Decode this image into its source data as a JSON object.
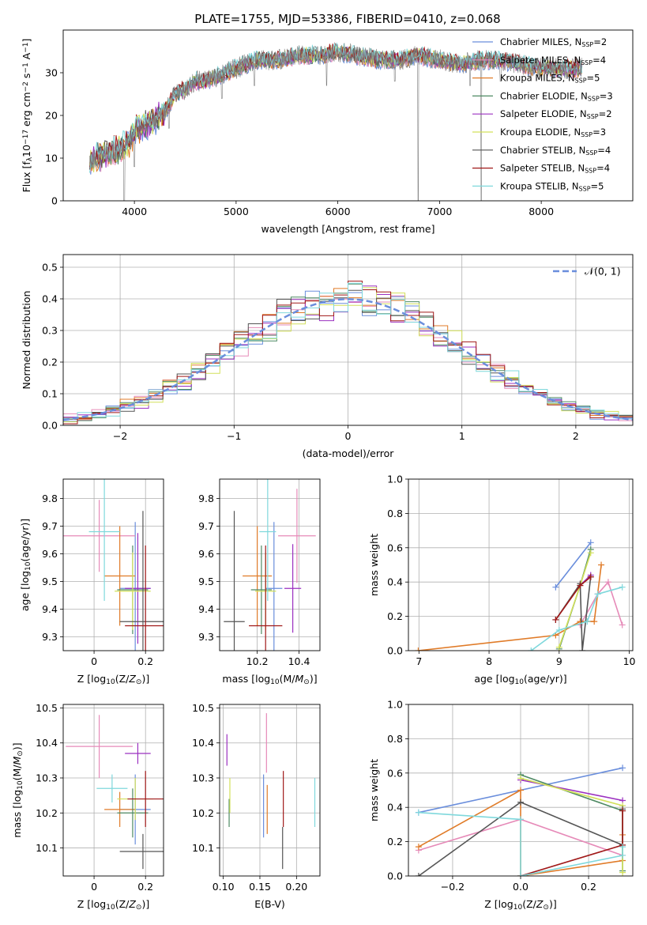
{
  "title": "PLATE=1755, MJD=53386, FIBERID=0410, z=0.068",
  "colors": {
    "chabrier_miles": "#6a8edc",
    "salpeter_miles": "#e68ab8",
    "kroupa_miles": "#e07b28",
    "chabrier_elodie": "#4e8a63",
    "salpeter_elodie": "#9b30c0",
    "kroupa_elodie": "#d2e05a",
    "chabrier_stelib": "#555555",
    "salpeter_stelib": "#a01818",
    "kroupa_stelib": "#7fd8dc"
  },
  "chart_data": [
    {
      "type": "line",
      "panel": "spectrum",
      "xlabel": "wavelength [Angstrom, rest frame]",
      "ylabel": "Flux [f_λ10^-17 erg cm^-2 s^-1 A^-1]",
      "xlim": [
        3300,
        8900
      ],
      "ylim": [
        0,
        40
      ],
      "xticks": [
        4000,
        5000,
        6000,
        7000,
        8000
      ],
      "yticks": [
        0,
        10,
        20,
        30
      ],
      "grid": false,
      "legend_position": "top-right",
      "legend": [
        {
          "prefix": "Chabrier MILES, N",
          "sub": "SSP",
          "suffix": "=2",
          "color_key": "chabrier_miles"
        },
        {
          "prefix": "Salpeter MILES, N",
          "sub": "SSP",
          "suffix": "=4",
          "color_key": "salpeter_miles"
        },
        {
          "prefix": "Kroupa MILES, N",
          "sub": "SSP",
          "suffix": "=5",
          "color_key": "kroupa_miles"
        },
        {
          "prefix": "Chabrier ELODIE, N",
          "sub": "SSP",
          "suffix": "=3",
          "color_key": "chabrier_elodie"
        },
        {
          "prefix": "Salpeter ELODIE, N",
          "sub": "SSP",
          "suffix": "=2",
          "color_key": "salpeter_elodie"
        },
        {
          "prefix": "Kroupa ELODIE, N",
          "sub": "SSP",
          "suffix": "=3",
          "color_key": "kroupa_elodie"
        },
        {
          "prefix": "Chabrier STELIB, N",
          "sub": "SSP",
          "suffix": "=4",
          "color_key": "chabrier_stelib"
        },
        {
          "prefix": "Salpeter STELIB, N",
          "sub": "SSP",
          "suffix": "=4",
          "color_key": "salpeter_stelib"
        },
        {
          "prefix": "Kroupa STELIB, N",
          "sub": "SSP",
          "suffix": "=5",
          "color_key": "kroupa_stelib"
        }
      ],
      "continuum": {
        "x": [
          3560,
          3700,
          3850,
          3950,
          4000,
          4100,
          4200,
          4300,
          4400,
          4500,
          4600,
          4700,
          4800,
          4900,
          5000,
          5200,
          5400,
          5600,
          5800,
          6000,
          6200,
          6400,
          6600,
          6800,
          7000,
          7200,
          7400,
          7600,
          7800,
          8000,
          8200,
          8400
        ],
        "y": [
          9,
          11,
          12,
          14,
          16,
          18,
          19,
          21,
          25,
          26,
          28,
          28,
          29,
          30,
          31,
          33,
          33,
          34,
          34,
          35,
          34,
          33,
          33,
          34,
          33,
          32,
          33,
          33,
          32,
          31,
          31,
          31
        ]
      },
      "dips": [
        {
          "x": 3900,
          "y": 0
        },
        {
          "x": 4000,
          "y": 8
        },
        {
          "x": 4340,
          "y": 17
        },
        {
          "x": 4860,
          "y": 24
        },
        {
          "x": 5180,
          "y": 27
        },
        {
          "x": 5890,
          "y": 27
        },
        {
          "x": 6560,
          "y": 28
        },
        {
          "x": 6790,
          "y": 0
        },
        {
          "x": 7300,
          "y": 27
        },
        {
          "x": 7410,
          "y": 0
        },
        {
          "x": 7600,
          "y": 28
        }
      ],
      "observed_color": "#808080"
    },
    {
      "type": "histogram",
      "panel": "residuals",
      "xlabel": "(data-model)/error",
      "ylabel": "Normed distribution",
      "xlim": [
        -2.5,
        2.5
      ],
      "ylim": [
        0,
        0.54
      ],
      "xticks": [
        -2,
        -1,
        0,
        1,
        2
      ],
      "xtick_labels": [
        "−2",
        "−1",
        "0",
        "1",
        "2"
      ],
      "yticks": [
        0.0,
        0.1,
        0.2,
        0.3,
        0.4,
        0.5
      ],
      "grid": true,
      "bin_width": 0.125,
      "legend_position": "top-right",
      "reference_curve": {
        "name": "𝒩(0, 1)",
        "mean": 0,
        "sigma": 1,
        "color": "#6a8edc",
        "dashed": true
      }
    },
    {
      "type": "scatter",
      "panel": "age-vs-Z",
      "xlabel": "Z [log10(Z/Z☉)]",
      "ylabel": "age [log10(age/yr)]",
      "xlim": [
        -0.12,
        0.27
      ],
      "ylim": [
        9.25,
        9.87
      ],
      "xticks": [
        0.0,
        0.2
      ],
      "yticks": [
        9.3,
        9.4,
        9.5,
        9.6,
        9.7,
        9.8
      ],
      "grid": true,
      "points": [
        {
          "key": "chabrier_miles",
          "x": 0.16,
          "y": 9.475,
          "xerr": 0.06,
          "yerr": 0.24
        },
        {
          "key": "salpeter_miles",
          "x": 0.02,
          "y": 9.665,
          "xerr": 0.14,
          "yerr": 0.13
        },
        {
          "key": "kroupa_miles",
          "x": 0.1,
          "y": 9.52,
          "xerr": 0.06,
          "yerr": 0.18
        },
        {
          "key": "chabrier_elodie",
          "x": 0.15,
          "y": 9.47,
          "xerr": 0.06,
          "yerr": 0.16
        },
        {
          "key": "salpeter_elodie",
          "x": 0.17,
          "y": 9.475,
          "xerr": 0.05,
          "yerr": 0.2
        },
        {
          "key": "kroupa_elodie",
          "x": 0.15,
          "y": 9.465,
          "xerr": 0.07,
          "yerr": 0.14
        },
        {
          "key": "chabrier_stelib",
          "x": 0.19,
          "y": 9.355,
          "xerr": 0.09,
          "yerr": 0.4
        },
        {
          "key": "salpeter_stelib",
          "x": 0.2,
          "y": 9.34,
          "xerr": 0.08,
          "yerr": 0.29
        },
        {
          "key": "kroupa_stelib",
          "x": 0.04,
          "y": 9.68,
          "xerr": 0.06,
          "yerr": 0.25
        }
      ]
    },
    {
      "type": "scatter",
      "panel": "age-vs-mass",
      "xlabel": "mass [log10(M/M☉)]",
      "ylabel": "",
      "xlim": [
        10.02,
        10.5
      ],
      "ylim": [
        9.25,
        9.87
      ],
      "xticks": [
        10.2,
        10.4
      ],
      "yticks": [
        9.3,
        9.4,
        9.5,
        9.6,
        9.7,
        9.8
      ],
      "grid": true,
      "points": [
        {
          "key": "chabrier_miles",
          "x": 10.28,
          "y": 9.475,
          "xerr": 0.04,
          "yerr": 0.24
        },
        {
          "key": "salpeter_miles",
          "x": 10.39,
          "y": 9.665,
          "xerr": 0.09,
          "yerr": 0.17
        },
        {
          "key": "kroupa_miles",
          "x": 10.2,
          "y": 9.52,
          "xerr": 0.07,
          "yerr": 0.18
        },
        {
          "key": "chabrier_elodie",
          "x": 10.22,
          "y": 9.47,
          "xerr": 0.05,
          "yerr": 0.16
        },
        {
          "key": "salpeter_elodie",
          "x": 10.37,
          "y": 9.475,
          "xerr": 0.04,
          "yerr": 0.16
        },
        {
          "key": "kroupa_elodie",
          "x": 10.24,
          "y": 9.465,
          "xerr": 0.05,
          "yerr": 0.14
        },
        {
          "key": "chabrier_stelib",
          "x": 10.09,
          "y": 9.355,
          "xerr": 0.05,
          "yerr": 0.4
        },
        {
          "key": "salpeter_stelib",
          "x": 10.24,
          "y": 9.34,
          "xerr": 0.08,
          "yerr": 0.29
        },
        {
          "key": "kroupa_stelib",
          "x": 10.25,
          "y": 9.68,
          "xerr": 0.04,
          "yerr": 0.25
        }
      ]
    },
    {
      "type": "line",
      "panel": "mass-weight-vs-age",
      "xlabel": "age [log10(age/yr)]",
      "ylabel": "mass weight",
      "xlim": [
        6.85,
        10.05
      ],
      "ylim": [
        0,
        1
      ],
      "xticks": [
        7,
        8,
        9,
        10
      ],
      "yticks": [
        0.0,
        0.2,
        0.4,
        0.6,
        0.8,
        1.0
      ],
      "grid": true,
      "series": [
        {
          "key": "chabrier_miles",
          "x": [
            8.95,
            9.45
          ],
          "y": [
            0.37,
            0.63
          ]
        },
        {
          "key": "salpeter_miles",
          "x": [
            9.3,
            9.55,
            9.7,
            9.9
          ],
          "y": [
            0.15,
            0.33,
            0.4,
            0.15
          ]
        },
        {
          "key": "kroupa_miles",
          "x": [
            6.99,
            8.95,
            9.3,
            9.5,
            9.6
          ],
          "y": [
            0.0,
            0.09,
            0.17,
            0.17,
            0.5
          ]
        },
        {
          "key": "chabrier_elodie",
          "x": [
            9.0,
            9.3,
            9.45
          ],
          "y": [
            0.01,
            0.38,
            0.59
          ]
        },
        {
          "key": "salpeter_elodie",
          "x": [
            9.3,
            9.45
          ],
          "y": [
            0.38,
            0.44
          ]
        },
        {
          "key": "kroupa_elodie",
          "x": [
            9.0,
            9.3,
            9.45
          ],
          "y": [
            0.02,
            0.38,
            0.57
          ]
        },
        {
          "key": "chabrier_stelib",
          "x": [
            8.95,
            9.3,
            9.33,
            9.45
          ],
          "y": [
            0.18,
            0.39,
            0.0,
            0.43
          ]
        },
        {
          "key": "salpeter_stelib",
          "x": [
            8.95,
            9.3,
            9.45
          ],
          "y": [
            0.18,
            0.38,
            0.43
          ]
        },
        {
          "key": "kroupa_stelib",
          "x": [
            8.6,
            9.0,
            9.4,
            9.55,
            9.9
          ],
          "y": [
            0.0,
            0.12,
            0.17,
            0.33,
            0.37
          ]
        }
      ]
    },
    {
      "type": "scatter",
      "panel": "mass-vs-Z",
      "xlabel": "Z [log10(Z/Z☉)]",
      "ylabel": "mass [log10(M/M☉)]",
      "xlim": [
        -0.12,
        0.27
      ],
      "ylim": [
        10.02,
        10.51
      ],
      "xticks": [
        0.0,
        0.2
      ],
      "yticks": [
        10.1,
        10.2,
        10.3,
        10.4,
        10.5
      ],
      "grid": true,
      "points": [
        {
          "key": "chabrier_miles",
          "x": 0.16,
          "y": 10.21,
          "xerr": 0.06,
          "yerr": 0.1
        },
        {
          "key": "salpeter_miles",
          "x": 0.02,
          "y": 10.39,
          "xerr": 0.13,
          "yerr": 0.09
        },
        {
          "key": "kroupa_miles",
          "x": 0.1,
          "y": 10.21,
          "xerr": 0.06,
          "yerr": 0.05
        },
        {
          "key": "chabrier_elodie",
          "x": 0.15,
          "y": 10.2,
          "xerr": 0.06,
          "yerr": 0.07
        },
        {
          "key": "salpeter_elodie",
          "x": 0.17,
          "y": 10.37,
          "xerr": 0.05,
          "yerr": 0.03
        },
        {
          "key": "kroupa_elodie",
          "x": 0.16,
          "y": 10.24,
          "xerr": 0.07,
          "yerr": 0.06
        },
        {
          "key": "chabrier_stelib",
          "x": 0.19,
          "y": 10.09,
          "xerr": 0.09,
          "yerr": 0.05
        },
        {
          "key": "salpeter_stelib",
          "x": 0.2,
          "y": 10.24,
          "xerr": 0.07,
          "yerr": 0.08
        },
        {
          "key": "kroupa_stelib",
          "x": 0.07,
          "y": 10.27,
          "xerr": 0.06,
          "yerr": 0.04
        }
      ]
    },
    {
      "type": "scatter",
      "panel": "mass-vs-ebv",
      "xlabel": "E(B-V)",
      "ylabel": "",
      "xlim": [
        0.095,
        0.232
      ],
      "ylim": [
        10.02,
        10.51
      ],
      "xticks": [
        0.1,
        0.15,
        0.2
      ],
      "xtick_labels": [
        "0.10",
        "0.15",
        "0.20"
      ],
      "yticks": [
        10.1,
        10.2,
        10.3,
        10.4,
        10.5
      ],
      "grid": true,
      "points": [
        {
          "key": "chabrier_miles",
          "x": 0.155,
          "y": 10.22,
          "xerr": 0.0,
          "yerr": 0.09
        },
        {
          "key": "salpeter_miles",
          "x": 0.159,
          "y": 10.4,
          "xerr": 0.0,
          "yerr": 0.085
        },
        {
          "key": "kroupa_miles",
          "x": 0.16,
          "y": 10.21,
          "xerr": 0.0,
          "yerr": 0.07
        },
        {
          "key": "chabrier_elodie",
          "x": 0.108,
          "y": 10.2,
          "xerr": 0.0,
          "yerr": 0.04
        },
        {
          "key": "salpeter_elodie",
          "x": 0.105,
          "y": 10.38,
          "xerr": 0.0,
          "yerr": 0.045
        },
        {
          "key": "kroupa_elodie",
          "x": 0.109,
          "y": 10.25,
          "xerr": 0.0,
          "yerr": 0.05
        },
        {
          "key": "chabrier_stelib",
          "x": 0.181,
          "y": 10.1,
          "xerr": 0.0,
          "yerr": 0.06
        },
        {
          "key": "salpeter_stelib",
          "x": 0.182,
          "y": 10.24,
          "xerr": 0.0,
          "yerr": 0.08
        },
        {
          "key": "kroupa_stelib",
          "x": 0.225,
          "y": 10.23,
          "xerr": 0.0,
          "yerr": 0.07
        }
      ]
    },
    {
      "type": "line",
      "panel": "mass-weight-vs-Z",
      "xlabel": "Z [log10(Z/Z☉)]",
      "ylabel": "mass weight",
      "xlim": [
        -0.33,
        0.33
      ],
      "ylim": [
        0,
        1
      ],
      "xticks": [
        -0.2,
        0.0,
        0.2
      ],
      "xtick_labels": [
        "−0.2",
        "0.0",
        "0.2"
      ],
      "yticks": [
        0.0,
        0.2,
        0.4,
        0.6,
        0.8,
        1.0
      ],
      "grid": true,
      "series": [
        {
          "key": "chabrier_miles",
          "x": [
            -0.3,
            0.3
          ],
          "y": [
            0.37,
            0.63
          ]
        },
        {
          "key": "salpeter_miles",
          "x": [
            -0.3,
            0.0,
            0.3
          ],
          "y": [
            0.15,
            0.33,
            0.12
          ]
        },
        {
          "key": "kroupa_miles",
          "x": [
            -0.3,
            0.0,
            0.0,
            0.3,
            0.3
          ],
          "y": [
            0.17,
            0.5,
            0.0,
            0.09,
            0.24
          ]
        },
        {
          "key": "chabrier_elodie",
          "x": [
            0.0,
            0.3,
            0.3
          ],
          "y": [
            0.59,
            0.38,
            0.03
          ]
        },
        {
          "key": "salpeter_elodie",
          "x": [
            0.0,
            0.3
          ],
          "y": [
            0.56,
            0.44
          ]
        },
        {
          "key": "kroupa_elodie",
          "x": [
            0.0,
            0.3,
            0.3
          ],
          "y": [
            0.57,
            0.41,
            0.02
          ]
        },
        {
          "key": "chabrier_stelib",
          "x": [
            -0.3,
            0.0,
            0.3,
            0.3
          ],
          "y": [
            0.0,
            0.43,
            0.18,
            0.39
          ]
        },
        {
          "key": "salpeter_stelib",
          "x": [
            0.0,
            0.3,
            0.3
          ],
          "y": [
            0.0,
            0.18,
            0.38
          ]
        },
        {
          "key": "kroupa_stelib",
          "x": [
            -0.3,
            0.0,
            0.0,
            0.3,
            0.3
          ],
          "y": [
            0.37,
            0.33,
            0.0,
            0.12,
            0.17
          ]
        }
      ]
    }
  ]
}
